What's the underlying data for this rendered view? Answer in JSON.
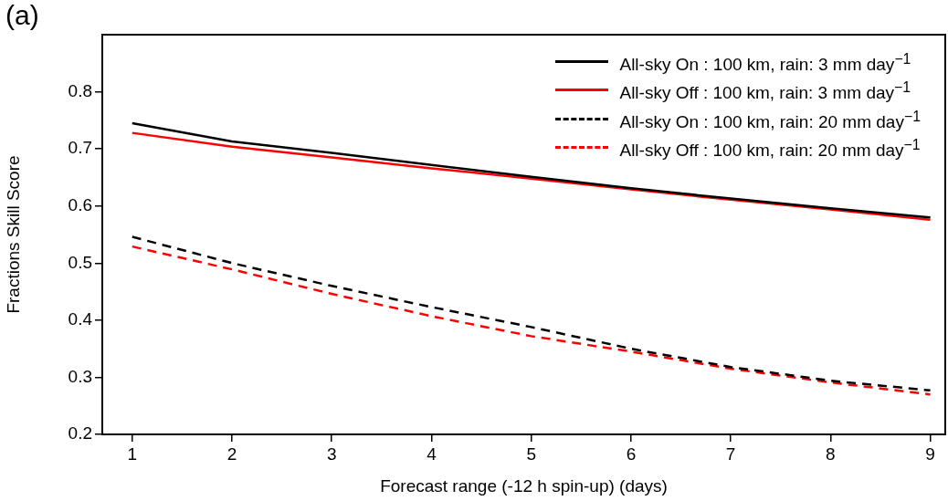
{
  "chart_data": {
    "type": "line",
    "xlabel": "Forecast range (-12 h spin-up) (days)",
    "ylabel": "Fractions Skill Score",
    "annotations": [
      "(a)"
    ],
    "x": [
      1,
      2,
      3,
      4,
      5,
      6,
      7,
      8,
      9
    ],
    "xlim": [
      0.7,
      9.15
    ],
    "xticks": [
      1,
      2,
      3,
      4,
      5,
      6,
      7,
      8,
      9
    ],
    "ylim": [
      0.2,
      0.9
    ],
    "yticks": [
      0.2,
      0.3,
      0.4,
      0.5,
      0.6,
      0.7,
      0.8
    ],
    "grid": false,
    "legend": "top right",
    "marker": "none",
    "series": [
      {
        "name": "All-sky On : 100 km, rain: 3 mm day$^{−1}$",
        "color": "#000000",
        "line_style": "solid",
        "values": [
          0.745,
          0.713,
          0.693,
          0.672,
          0.651,
          0.631,
          0.613,
          0.596,
          0.58
        ]
      },
      {
        "name": "All-sky Off : 100 km, rain: 3 mm day$^{−1}$",
        "color": "#ff0000",
        "line_style": "solid",
        "values": [
          0.728,
          0.704,
          0.685,
          0.666,
          0.648,
          0.629,
          0.611,
          0.594,
          0.576
        ]
      },
      {
        "name": "All-sky On : 100 km, rain: 20 mm day$^{−1}$",
        "color": "#000000",
        "line_style": "dashed",
        "values": [
          0.546,
          0.5,
          0.46,
          0.423,
          0.388,
          0.35,
          0.318,
          0.294,
          0.277
        ]
      },
      {
        "name": "All-sky Off : 100 km, rain: 20 mm day$^{−1}$",
        "color": "#ff0000",
        "line_style": "dashed",
        "values": [
          0.529,
          0.489,
          0.446,
          0.407,
          0.372,
          0.345,
          0.315,
          0.291,
          0.27
        ]
      }
    ]
  }
}
